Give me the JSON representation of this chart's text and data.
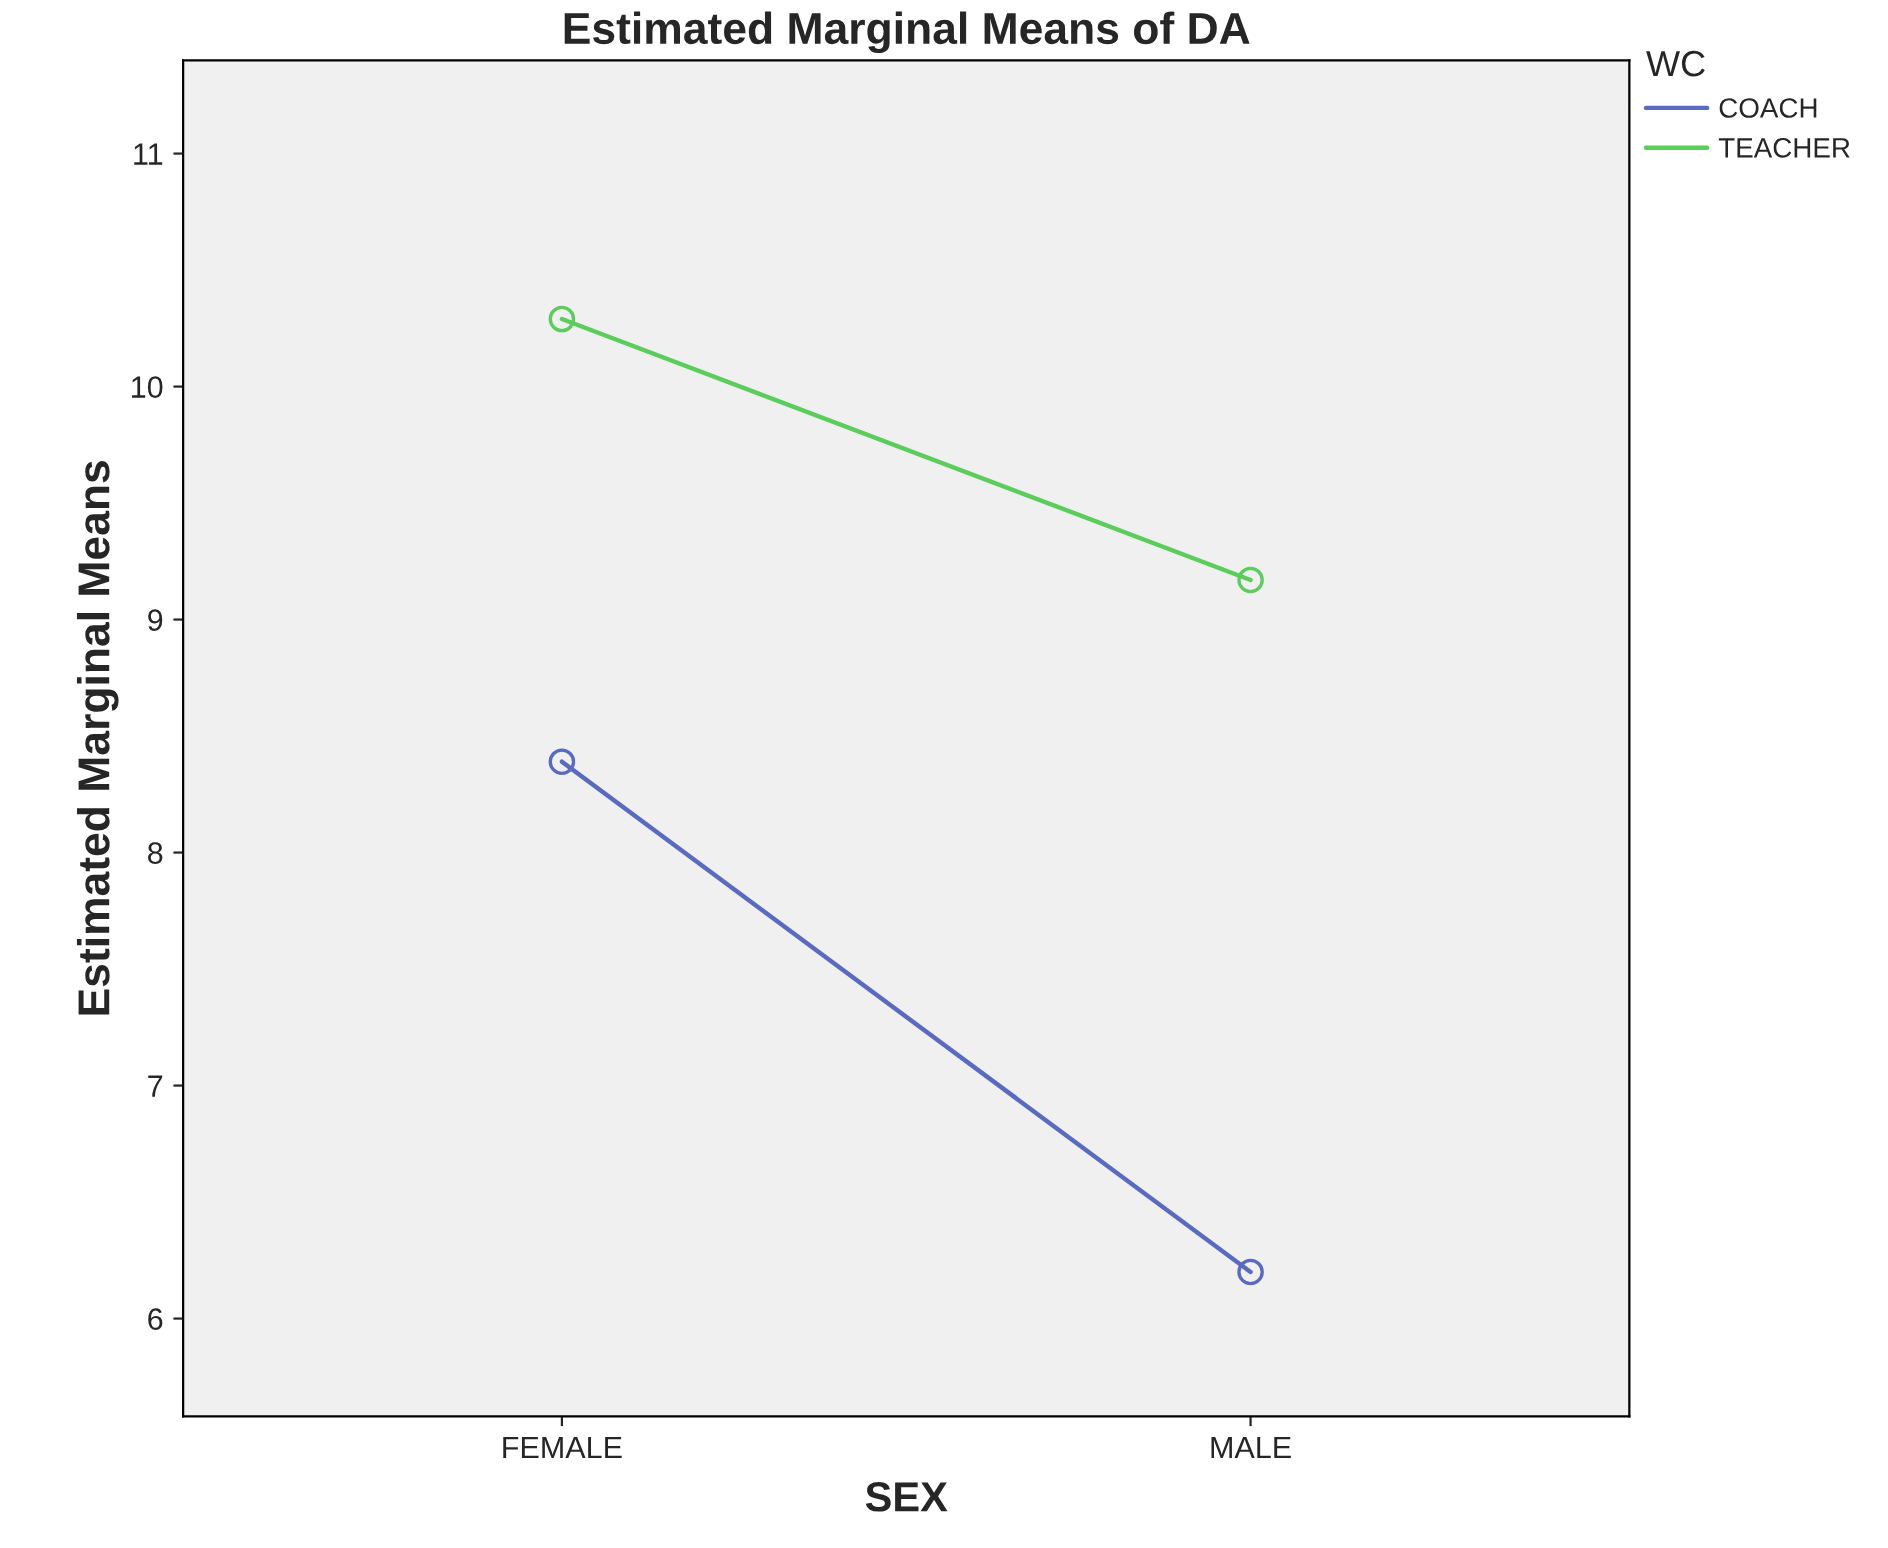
{
  "chart_data": {
    "type": "line",
    "title": "Estimated Marginal Means of DA",
    "xlabel": "SEX",
    "ylabel": "Estimated Marginal Means",
    "legend_title": "WC",
    "categories": [
      "FEMALE",
      "MALE"
    ],
    "series": [
      {
        "name": "COACH",
        "color": "#5a6bbf",
        "values": [
          8.39,
          6.2
        ]
      },
      {
        "name": "TEACHER",
        "color": "#5ccc5c",
        "values": [
          10.29,
          9.17
        ]
      }
    ],
    "ylim": [
      5.58,
      11.4
    ],
    "yticks": [
      6,
      7,
      8,
      9,
      10,
      11
    ],
    "grid": false,
    "legend": "top right",
    "marker": "circle",
    "line_style": "solid"
  }
}
